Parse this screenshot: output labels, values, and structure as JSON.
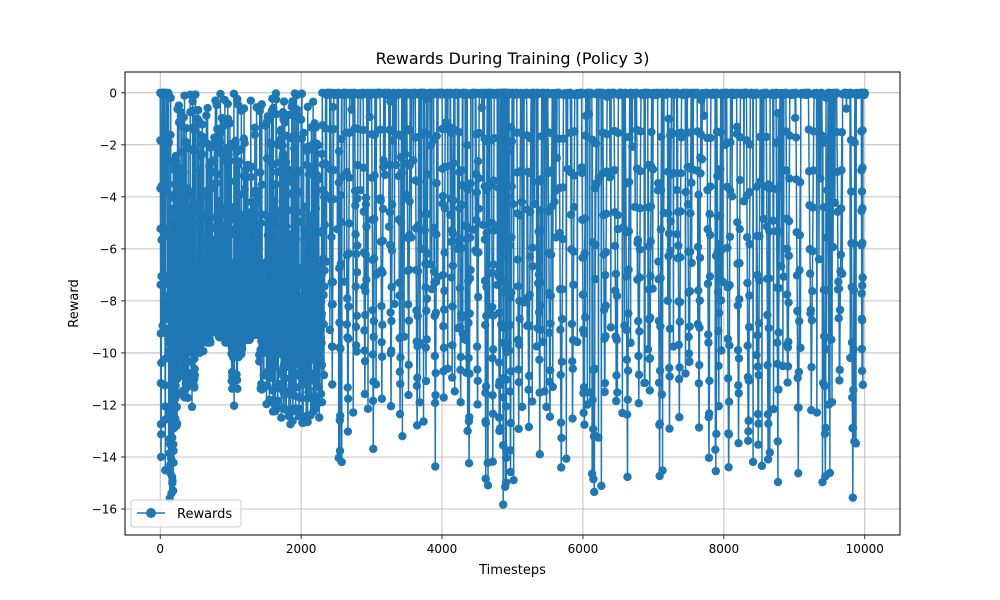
{
  "chart_data": {
    "type": "line",
    "title": "Rewards During Training (Policy 3)",
    "xlabel": "Timesteps",
    "ylabel": "Reward",
    "xlim": [
      -500,
      10500
    ],
    "ylim": [
      -17,
      0.8
    ],
    "xticks": [
      0,
      2000,
      4000,
      6000,
      8000,
      10000
    ],
    "xtick_labels": [
      "0",
      "2000",
      "4000",
      "6000",
      "8000",
      "10000"
    ],
    "yticks": [
      0,
      -2,
      -4,
      -6,
      -8,
      -10,
      -12,
      -14,
      -16
    ],
    "ytick_labels": [
      "0",
      "−2",
      "−4",
      "−6",
      "−8",
      "−10",
      "−12",
      "−14",
      "−16"
    ],
    "grid": true,
    "legend": {
      "position": "lower-left"
    },
    "series": [
      {
        "name": "Rewards",
        "color": "#1f77b4",
        "marker": "circle",
        "x_range": [
          0,
          10000
        ],
        "episodes": [
          {
            "x": 0,
            "min": -15.2
          },
          {
            "x": 60,
            "min": -15.0
          },
          {
            "x": 120,
            "min": -15.7
          },
          {
            "x": 200,
            "min": -13.0
          },
          {
            "x": 300,
            "min": -11.8
          },
          {
            "x": 420,
            "min": -12.3
          },
          {
            "x": 520,
            "min": -10.0
          },
          {
            "x": 620,
            "min": -9.6
          },
          {
            "x": 720,
            "min": -9.2
          },
          {
            "x": 820,
            "min": -9.4
          },
          {
            "x": 920,
            "min": -9.6
          },
          {
            "x": 1000,
            "min": -12.3
          },
          {
            "x": 1100,
            "min": -10.2
          },
          {
            "x": 1200,
            "min": -9.5
          },
          {
            "x": 1300,
            "min": -9.3
          },
          {
            "x": 1400,
            "min": -11.5
          },
          {
            "x": 1500,
            "min": -12.0
          },
          {
            "x": 1600,
            "min": -12.4
          },
          {
            "x": 1700,
            "min": -12.5
          },
          {
            "x": 1800,
            "min": -12.8
          },
          {
            "x": 1900,
            "min": -12.6
          },
          {
            "x": 2000,
            "min": -12.7
          },
          {
            "x": 2100,
            "min": -12.8
          },
          {
            "x": 2200,
            "min": -12.5
          },
          {
            "x": 2300,
            "min": -11.0
          },
          {
            "x": 2420,
            "min": -12.0
          },
          {
            "x": 2530,
            "min": -14.4
          },
          {
            "x": 2640,
            "min": -13.5
          },
          {
            "x": 2760,
            "min": -12.0
          },
          {
            "x": 2880,
            "min": -12.5
          },
          {
            "x": 3000,
            "min": -13.9
          },
          {
            "x": 3120,
            "min": -12.0
          },
          {
            "x": 3250,
            "min": -12.3
          },
          {
            "x": 3380,
            "min": -13.6
          },
          {
            "x": 3500,
            "min": -12.0
          },
          {
            "x": 3620,
            "min": -13.9
          },
          {
            "x": 3750,
            "min": -13.3
          },
          {
            "x": 3880,
            "min": -14.7
          },
          {
            "x": 4000,
            "min": -12.3
          },
          {
            "x": 4120,
            "min": -11.5
          },
          {
            "x": 4240,
            "min": -12.3
          },
          {
            "x": 4360,
            "min": -15.0
          },
          {
            "x": 4480,
            "min": -13.2
          },
          {
            "x": 4600,
            "min": -15.1
          },
          {
            "x": 4700,
            "min": -14.6
          },
          {
            "x": 4800,
            "min": -15.0
          },
          {
            "x": 4860,
            "min": -16.0
          },
          {
            "x": 4900,
            "min": -16.2
          },
          {
            "x": 4950,
            "min": -15.8
          },
          {
            "x": 5060,
            "min": -13.0
          },
          {
            "x": 5200,
            "min": -13.1
          },
          {
            "x": 5360,
            "min": -14.6
          },
          {
            "x": 5500,
            "min": -13.0
          },
          {
            "x": 5660,
            "min": -15.2
          },
          {
            "x": 5820,
            "min": -12.8
          },
          {
            "x": 5980,
            "min": -13.3
          },
          {
            "x": 6130,
            "min": -15.7
          },
          {
            "x": 6280,
            "min": -13.4
          },
          {
            "x": 6440,
            "min": -12.7
          },
          {
            "x": 6600,
            "min": -14.9
          },
          {
            "x": 6760,
            "min": -12.5
          },
          {
            "x": 6920,
            "min": -12.2
          },
          {
            "x": 7060,
            "min": -15.0
          },
          {
            "x": 7200,
            "min": -13.3
          },
          {
            "x": 7340,
            "min": -13.0
          },
          {
            "x": 7480,
            "min": -12.6
          },
          {
            "x": 7620,
            "min": -13.0
          },
          {
            "x": 7760,
            "min": -15.2
          },
          {
            "x": 7900,
            "min": -13.0
          },
          {
            "x": 8040,
            "min": -15.9
          },
          {
            "x": 8180,
            "min": -14.0
          },
          {
            "x": 8320,
            "min": -15.9
          },
          {
            "x": 8460,
            "min": -15.0
          },
          {
            "x": 8600,
            "min": -14.8
          },
          {
            "x": 8740,
            "min": -15.4
          },
          {
            "x": 8880,
            "min": -13.2
          },
          {
            "x": 9020,
            "min": -14.8
          },
          {
            "x": 9200,
            "min": -12.3
          },
          {
            "x": 9400,
            "min": -15.8
          },
          {
            "x": 9600,
            "min": -12.2
          },
          {
            "x": 9800,
            "min": -16.0
          },
          {
            "x": 9950,
            "min": -12.5
          }
        ]
      }
    ]
  }
}
